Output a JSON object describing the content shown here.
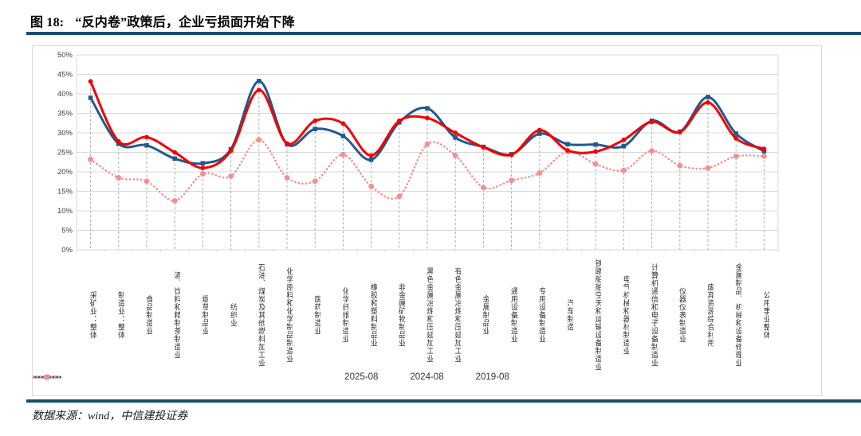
{
  "header": {
    "figure_label": "图 18:",
    "title": "“反内卷”政策后，企业亏损面开始下降"
  },
  "footer": {
    "source": "数据来源：wind，中信建投证券"
  },
  "colors": {
    "rule": "#17506e",
    "grid": "#d9d9d9",
    "plot_border": "#d9d9d9",
    "dropline": "#ababab",
    "axis_text": "#404040",
    "series_red": "#f40000",
    "series_blue": "#1f5b8e",
    "series_pink": "#f58f8f"
  },
  "chart_data": {
    "type": "line",
    "title": "“反内卷”政策后，企业亏损面开始下降",
    "xlabel": "",
    "ylabel": "",
    "ylim": [
      0,
      50
    ],
    "ytick_step": 5,
    "ytick_format": "percent",
    "grid": true,
    "legend_position": "bottom",
    "categories": [
      "采矿业：整体",
      "制造业：整体",
      "食品制造业",
      "酒、饮料和精制茶制造业",
      "烟草制品业",
      "纺织业",
      "石油、煤炭及其他燃料加工业",
      "化学原料和化学制品制造业",
      "医药制造业",
      "化学纤维制造业",
      "橡胶和塑料制品业",
      "非金属矿物制品业",
      "黑色金属冶炼和压延加工业",
      "有色金属冶炼和压延加工业",
      "金属制品业",
      "通用设备制造业",
      "专用设备制造业",
      "汽车制造",
      "铁路船舶空天和运输设备制造业",
      "电气机械和器材制造业",
      "计算机通信和电子设备制造业",
      "仪器仪表制造业",
      "废弃资源综合利用",
      "金属制品、机械和设备修理业",
      "公用事业整体"
    ],
    "series": [
      {
        "name": "2025-08",
        "color": "#f40000",
        "style": "solid",
        "marker": "circle",
        "values": [
          43.2,
          27.8,
          28.9,
          25.0,
          21.0,
          25.4,
          41.0,
          27.3,
          33.1,
          32.4,
          24.2,
          33.1,
          33.8,
          30.0,
          26.3,
          24.4,
          30.7,
          25.5,
          25.2,
          28.2,
          32.8,
          30.2,
          37.8,
          28.6,
          25.9
        ]
      },
      {
        "name": "2024-08",
        "color": "#1f5b8e",
        "style": "solid",
        "marker": "square",
        "values": [
          39.0,
          27.2,
          26.8,
          23.4,
          22.2,
          25.8,
          43.3,
          27.1,
          31.0,
          29.2,
          23.1,
          32.7,
          36.3,
          28.8,
          26.4,
          24.5,
          29.8,
          27.1,
          27.0,
          26.6,
          33.1,
          30.3,
          39.2,
          29.8,
          25.3
        ]
      },
      {
        "name": "2019-08",
        "color": "#f58f8f",
        "style": "dotted",
        "marker": "circle",
        "values": [
          23.2,
          18.5,
          17.6,
          12.6,
          19.5,
          18.9,
          28.2,
          18.5,
          17.6,
          24.4,
          16.3,
          13.7,
          27.1,
          24.2,
          16.0,
          17.8,
          19.7,
          25.2,
          22.0,
          20.4,
          25.4,
          21.6,
          21.0,
          24.0,
          24.0
        ]
      }
    ]
  }
}
